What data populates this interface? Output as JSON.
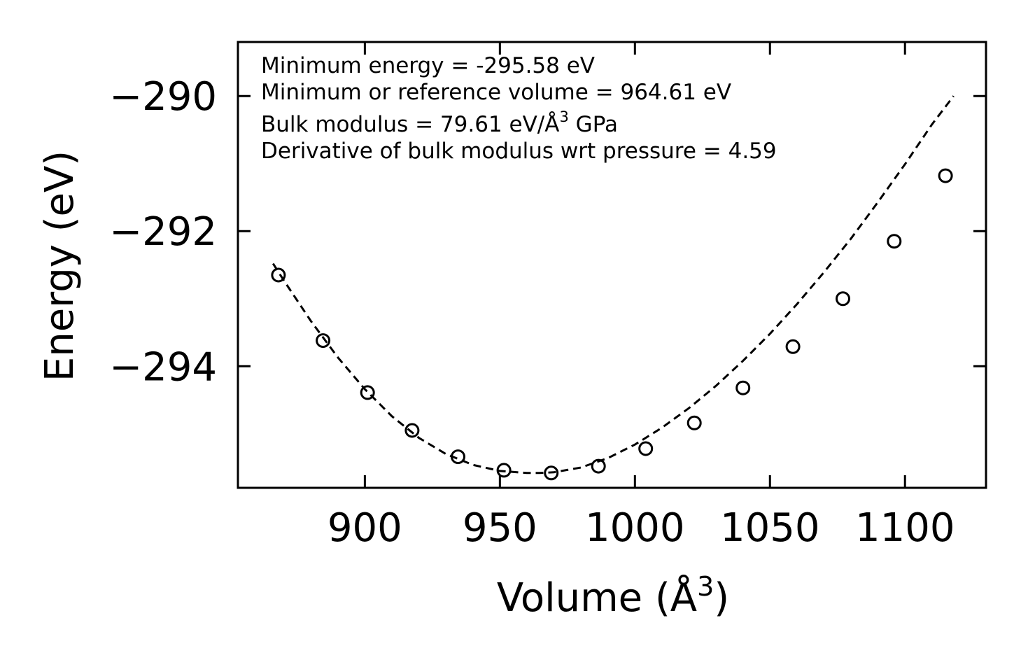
{
  "chart_data": {
    "type": "scatter",
    "xlabel": "Volume (Å",
    "xlabel_sup": "3",
    "xlabel_end": ")",
    "ylabel": "Energy (eV)",
    "xlim": [
      853,
      1130
    ],
    "ylim": [
      -295.8,
      -289.2
    ],
    "xticks": [
      900,
      950,
      1000,
      1050,
      1100
    ],
    "yticks": [
      -290,
      -292,
      -294
    ],
    "xtick_labels": [
      "900",
      "950",
      "1000",
      "1050",
      "1100"
    ],
    "ytick_labels": [
      "−290",
      "−292",
      "−294"
    ],
    "series": [
      {
        "name": "data",
        "marker": "open-circle",
        "x": [
          868,
          884.5,
          901,
          917.5,
          934.5,
          951.5,
          969,
          986.5,
          1004,
          1022,
          1040,
          1058.5,
          1077,
          1096,
          1115
        ],
        "y": [
          -292.65,
          -293.62,
          -294.39,
          -294.95,
          -295.34,
          -295.54,
          -295.58,
          -295.48,
          -295.22,
          -294.84,
          -294.32,
          -293.71,
          -293.0,
          -292.15,
          -291.18
        ]
      },
      {
        "name": "fit",
        "style": "dashed",
        "x": [
          866,
          870,
          880,
          890,
          900,
          910,
          920,
          930,
          940,
          950,
          960,
          964.61,
          970,
          980,
          990,
          1000,
          1010,
          1020,
          1030,
          1040,
          1050,
          1060,
          1070,
          1080,
          1090,
          1100,
          1110,
          1118
        ],
        "y": [
          -292.48,
          -292.73,
          -293.33,
          -293.87,
          -294.34,
          -294.74,
          -295.06,
          -295.3,
          -295.46,
          -295.55,
          -295.58,
          -295.58,
          -295.57,
          -295.5,
          -295.36,
          -295.16,
          -294.91,
          -294.62,
          -294.29,
          -293.92,
          -293.52,
          -293.08,
          -292.61,
          -292.11,
          -291.57,
          -291.01,
          -290.42,
          -290.0
        ]
      }
    ],
    "annotations": [
      {
        "text": "Minimum energy = -295.58 eV"
      },
      {
        "text": "Minimum or reference volume = 964.61 eV"
      },
      {
        "text": "Bulk modulus = 79.61 eV/Å",
        "sup": "3",
        "tail": " GPa"
      },
      {
        "text": "Derivative of bulk modulus wrt pressure = 4.59"
      }
    ],
    "grid": false,
    "legend": "none",
    "colors": {
      "line": "#000000",
      "background": "#ffffff"
    }
  }
}
